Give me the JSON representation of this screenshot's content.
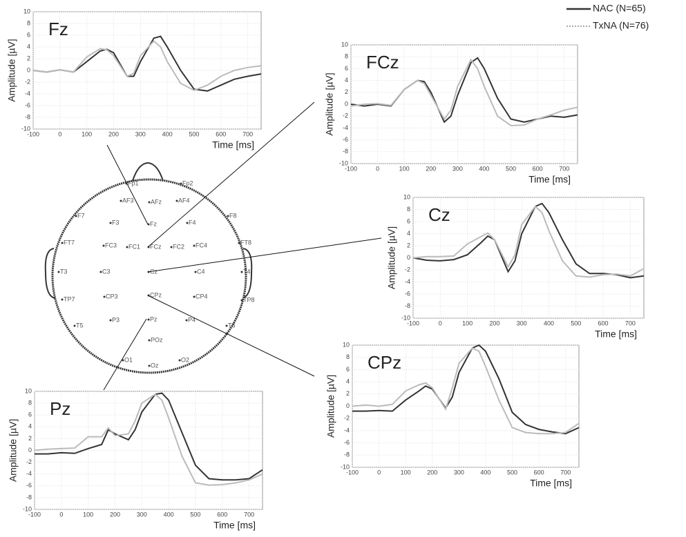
{
  "chart_data": [
    {
      "type": "line",
      "title": "Fz",
      "xlabel": "Time [ms]",
      "ylabel": "Amplitude [µV]",
      "x": [
        -100,
        -50,
        0,
        50,
        100,
        150,
        175,
        200,
        250,
        275,
        300,
        350,
        375,
        400,
        450,
        500,
        550,
        600,
        650,
        700,
        750
      ],
      "series": [
        {
          "name": "NAC (N=65)",
          "color": "#333333",
          "values": [
            0,
            -0.3,
            0.1,
            -0.3,
            1.5,
            3.3,
            3.6,
            3.0,
            -1.0,
            -1.0,
            1.5,
            5.5,
            5.8,
            4.0,
            0,
            -3.2,
            -3.5,
            -2.5,
            -1.5,
            -1.0,
            -0.6
          ]
        },
        {
          "name": "TxNA (N=76)",
          "color": "#bbbbbb",
          "values": [
            0,
            -0.3,
            0.1,
            -0.3,
            2.3,
            3.7,
            3.5,
            2.5,
            -1.0,
            -0.5,
            2.5,
            5.0,
            4.0,
            1.5,
            -2.2,
            -3.4,
            -2.5,
            -1.0,
            0,
            0.5,
            0.8
          ]
        }
      ],
      "xlim": [
        -100,
        750
      ],
      "ylim": [
        -10,
        10
      ],
      "xticks": [
        -100,
        0,
        100,
        200,
        300,
        400,
        500,
        600,
        700
      ],
      "yticks": [
        -10,
        -8,
        -6,
        -4,
        -2,
        0,
        2,
        4,
        6,
        8,
        10
      ],
      "grid": true
    },
    {
      "type": "line",
      "title": "FCz",
      "xlabel": "Time [ms]",
      "ylabel": "Amplitude [µV]",
      "x": [
        -100,
        -50,
        0,
        50,
        100,
        150,
        175,
        200,
        250,
        275,
        300,
        350,
        375,
        400,
        450,
        500,
        550,
        600,
        650,
        700,
        750
      ],
      "series": [
        {
          "color": "#333333",
          "values": [
            0,
            -0.3,
            0,
            -0.3,
            2.5,
            4.0,
            3.8,
            2.0,
            -3.0,
            -2.0,
            1.5,
            7.0,
            7.8,
            6.0,
            1.0,
            -2.5,
            -3.0,
            -2.5,
            -2.0,
            -2.2,
            -1.8
          ]
        },
        {
          "color": "#bbbbbb",
          "values": [
            -0.3,
            0,
            0.1,
            -0.2,
            2.5,
            4.0,
            3.5,
            1.5,
            -2.5,
            -1.0,
            3.0,
            7.5,
            6.0,
            3.0,
            -2.0,
            -3.6,
            -3.5,
            -2.5,
            -1.8,
            -1.0,
            -0.5
          ]
        }
      ],
      "xlim": [
        -100,
        750
      ],
      "ylim": [
        -10,
        10
      ],
      "xticks": [
        -100,
        0,
        100,
        200,
        300,
        400,
        500,
        600,
        700
      ],
      "yticks": [
        -10,
        -8,
        -6,
        -4,
        -2,
        0,
        2,
        4,
        6,
        8,
        10
      ],
      "grid": true
    },
    {
      "type": "line",
      "title": "Cz",
      "xlabel": "Time [ms]",
      "ylabel": "Amplitude [µV]",
      "x": [
        -100,
        -50,
        0,
        50,
        100,
        150,
        175,
        200,
        250,
        275,
        300,
        350,
        375,
        400,
        450,
        500,
        550,
        600,
        650,
        700,
        750
      ],
      "series": [
        {
          "color": "#333333",
          "values": [
            0,
            -0.4,
            -0.5,
            -0.3,
            0.5,
            2.5,
            3.6,
            3.0,
            -2.3,
            -0.5,
            4.0,
            8.5,
            9.0,
            7.5,
            3.0,
            -1.0,
            -2.6,
            -2.6,
            -2.8,
            -3.3,
            -3.0
          ]
        },
        {
          "color": "#bbbbbb",
          "values": [
            0,
            0.2,
            0.2,
            0.3,
            2.3,
            3.5,
            4.1,
            3.0,
            -1.5,
            0.5,
            5.5,
            8.5,
            7.5,
            4.5,
            -0.5,
            -3.0,
            -3.2,
            -2.8,
            -2.7,
            -3.0,
            -1.8
          ]
        }
      ],
      "xlim": [
        -100,
        750
      ],
      "ylim": [
        -10,
        10
      ],
      "xticks": [
        -100,
        0,
        100,
        200,
        300,
        400,
        500,
        600,
        700
      ],
      "yticks": [
        -10,
        -8,
        -6,
        -4,
        -2,
        0,
        2,
        4,
        6,
        8,
        10
      ],
      "grid": true
    },
    {
      "type": "line",
      "title": "CPz",
      "xlabel": "Time [ms]",
      "ylabel": "Amplitude [µV]",
      "x": [
        -100,
        -50,
        0,
        50,
        100,
        150,
        175,
        200,
        250,
        275,
        300,
        350,
        375,
        400,
        450,
        500,
        550,
        600,
        650,
        700,
        750
      ],
      "series": [
        {
          "color": "#333333",
          "values": [
            -0.8,
            -0.8,
            -0.7,
            -0.8,
            1.0,
            2.5,
            3.3,
            2.8,
            -0.3,
            1.5,
            5.5,
            9.5,
            10.0,
            9.0,
            4.5,
            -1.0,
            -3.0,
            -3.8,
            -4.2,
            -4.5,
            -3.5
          ]
        },
        {
          "color": "#bbbbbb",
          "values": [
            0,
            0.2,
            0,
            0.3,
            2.5,
            3.5,
            3.8,
            3.0,
            -0.5,
            3.0,
            7.0,
            9.5,
            9.0,
            6.5,
            1.0,
            -3.5,
            -4.3,
            -4.5,
            -4.5,
            -4.3,
            -2.8
          ]
        }
      ],
      "xlim": [
        -100,
        750
      ],
      "ylim": [
        -10,
        10
      ],
      "xticks": [
        -100,
        0,
        100,
        200,
        300,
        400,
        500,
        600,
        700
      ],
      "yticks": [
        -10,
        -8,
        -6,
        -4,
        -2,
        0,
        2,
        4,
        6,
        8,
        10
      ],
      "grid": true
    },
    {
      "type": "line",
      "title": "Pz",
      "xlabel": "Time [ms]",
      "ylabel": "Amplitude [µV]",
      "x": [
        -100,
        -50,
        0,
        50,
        100,
        150,
        175,
        200,
        250,
        275,
        300,
        350,
        375,
        400,
        450,
        500,
        550,
        600,
        650,
        700,
        750
      ],
      "series": [
        {
          "color": "#333333",
          "values": [
            -0.6,
            -0.6,
            -0.4,
            -0.5,
            0.3,
            1.0,
            3.5,
            2.8,
            1.8,
            3.5,
            6.5,
            9.5,
            9.7,
            8.5,
            3.0,
            -2.5,
            -4.8,
            -5.0,
            -5.0,
            -4.8,
            -3.3
          ]
        },
        {
          "color": "#bbbbbb",
          "values": [
            0,
            0.2,
            0.3,
            0.4,
            2.3,
            2.3,
            3.8,
            2.5,
            2.8,
            5.0,
            8.0,
            9.5,
            8.5,
            5.5,
            -1.0,
            -5.5,
            -5.9,
            -5.8,
            -5.5,
            -5.0,
            -4.0
          ]
        }
      ],
      "xlim": [
        -100,
        750
      ],
      "ylim": [
        -10,
        10
      ],
      "xticks": [
        -100,
        0,
        100,
        200,
        300,
        400,
        500,
        600,
        700
      ],
      "yticks": [
        -10,
        -8,
        -6,
        -4,
        -2,
        0,
        2,
        4,
        6,
        8,
        10
      ],
      "grid": true
    }
  ],
  "head_map": {
    "electrodes": [
      "Fp1",
      "Fp2",
      "AF3",
      "AFz",
      "AF4",
      "F7",
      "F3",
      "Fz",
      "F4",
      "F8",
      "FT7",
      "FC3",
      "FC1",
      "FCz",
      "FC2",
      "FC4",
      "FT8",
      "T3",
      "C3",
      "Cz",
      "C4",
      "T4",
      "TP7",
      "CP3",
      "CPz",
      "CP4",
      "TP8",
      "T5",
      "P3",
      "Pz",
      "P4",
      "T6",
      "O1",
      "POz",
      "Oz",
      "O2"
    ]
  }
}
